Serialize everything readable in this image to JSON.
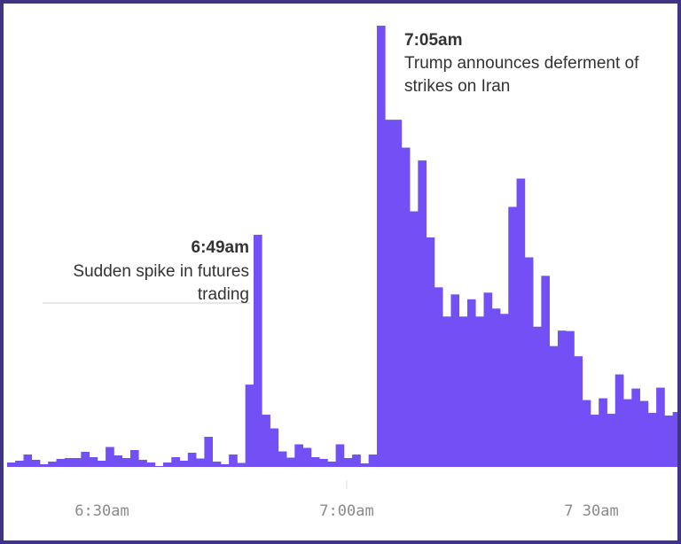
{
  "colors": {
    "bars": "#7350f5",
    "frame": "#3f3384",
    "text": "#333333",
    "tick_text": "#8a8a8a"
  },
  "chart_data": {
    "type": "area",
    "title": "",
    "xlabel": "",
    "ylabel": "",
    "x_tick_labels": [
      "6:30am",
      "7:00am",
      "7 30am"
    ],
    "x_range_minutes_after_6am": [
      24,
      37.8
    ],
    "x_range_minutes": [
      24,
      37.8
    ],
    "ylim": [
      0,
      100
    ],
    "grid": false,
    "legend": "none",
    "series": [
      {
        "values": [
          1.2,
          1.6,
          3.0,
          1.8,
          0.8,
          1.4,
          2.0,
          2.2,
          2.2,
          3.6,
          2.4,
          1.6,
          4.7,
          2.8,
          2.2,
          4.0,
          1.8,
          1.2,
          0.4,
          1.2,
          2.4,
          1.6,
          3.4,
          2.1,
          7.0,
          1.4,
          0.8,
          3.0,
          1.1,
          18.8,
          52.7,
          12.0,
          8.9,
          3.7,
          2.3,
          5.3,
          4.5,
          2.4,
          2.0,
          1.4,
          5.3,
          2.2,
          3.0,
          1.0,
          3.0,
          100.0,
          78.7,
          78.7,
          72.4,
          58.0,
          69.5,
          52.1,
          40.8,
          34.2,
          39.2,
          34.2,
          38.1,
          34.2,
          39.6,
          36.0,
          34.8,
          59.0,
          65.4,
          47.6,
          31.9,
          43.4,
          27.5,
          31.0,
          30.9,
          25.2,
          15.3,
          12.0,
          15.7,
          12.2,
          21.1,
          15.5,
          17.9,
          15.1,
          12.4,
          18.1,
          11.8,
          12.6
        ]
      }
    ],
    "annotations": [
      {
        "time": "6:49am",
        "text_line1": "Sudden spike in futures",
        "text_line2": "trading"
      },
      {
        "time": "7:05am",
        "text_line1": "Trump announces deferment of",
        "text_line2": "strikes on Iran"
      }
    ]
  }
}
